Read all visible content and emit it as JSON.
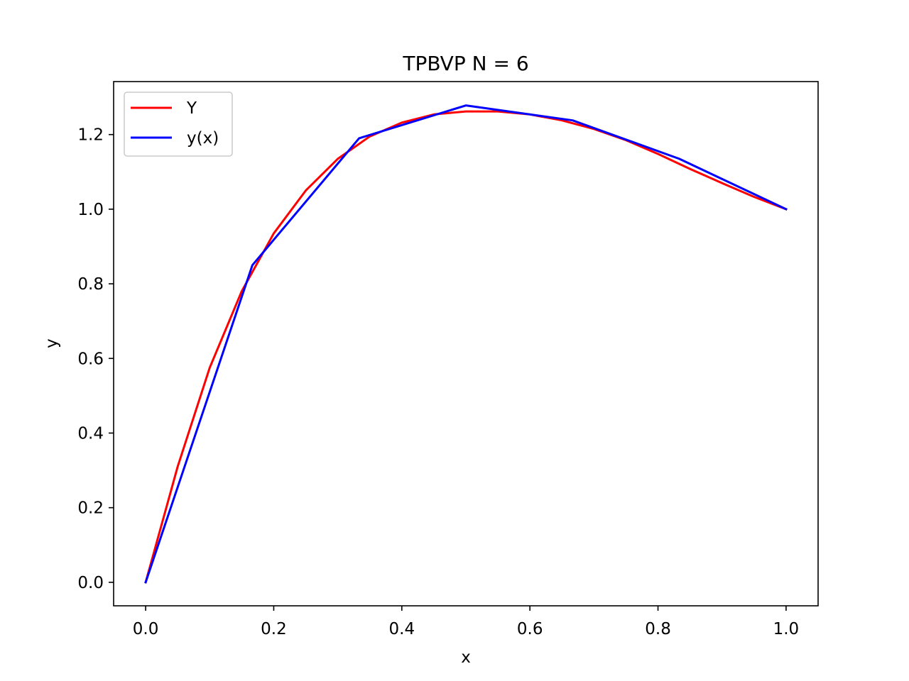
{
  "chart_data": {
    "type": "line",
    "title": "TPBVP N = 6",
    "xlabel": "x",
    "ylabel": "y",
    "xlim": [
      -0.05,
      1.05
    ],
    "ylim": [
      -0.063,
      1.342
    ],
    "xticks": [
      0.0,
      0.2,
      0.4,
      0.6,
      0.8,
      1.0
    ],
    "xtick_labels": [
      "0.0",
      "0.2",
      "0.4",
      "0.6",
      "0.8",
      "1.0"
    ],
    "yticks": [
      0.0,
      0.2,
      0.4,
      0.6,
      0.8,
      1.0,
      1.2
    ],
    "ytick_labels": [
      "0.0",
      "0.2",
      "0.4",
      "0.6",
      "0.8",
      "1.0",
      "1.2"
    ],
    "grid": false,
    "legend_position": "upper-left",
    "series": [
      {
        "name": "Y",
        "color": "#ff0000",
        "x": [
          0.0,
          0.05,
          0.1,
          0.15,
          0.2,
          0.25,
          0.3,
          0.35,
          0.4,
          0.45,
          0.5,
          0.55,
          0.6,
          0.65,
          0.7,
          0.75,
          0.8,
          0.85,
          0.9,
          0.95,
          1.0
        ],
        "y": [
          0.0,
          0.31,
          0.575,
          0.78,
          0.935,
          1.05,
          1.135,
          1.195,
          1.232,
          1.254,
          1.262,
          1.262,
          1.254,
          1.238,
          1.215,
          1.185,
          1.148,
          1.108,
          1.07,
          1.033,
          1.0
        ]
      },
      {
        "name": "y(x)",
        "color": "#0000ff",
        "x": [
          0.0,
          0.1667,
          0.3333,
          0.5,
          0.6667,
          0.8333,
          1.0
        ],
        "y": [
          0.0,
          0.85,
          1.19,
          1.278,
          1.238,
          1.135,
          1.0
        ]
      }
    ]
  }
}
